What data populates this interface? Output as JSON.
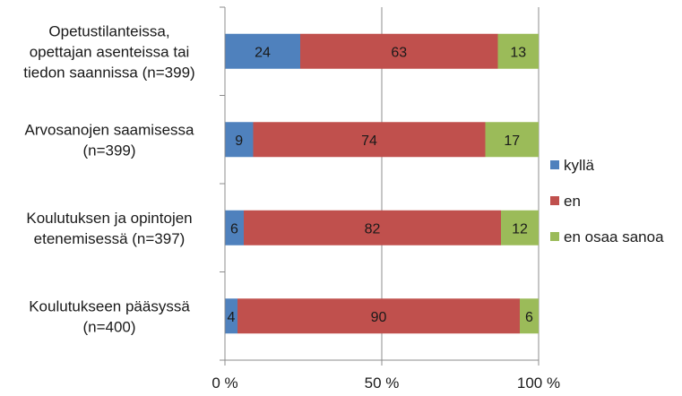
{
  "chart_data": {
    "type": "bar",
    "orientation": "horizontal",
    "stacked": "percent",
    "categories": [
      [
        "Opetustilanteissa,",
        "opettajan asenteissa tai",
        "tiedon saannissa (n=399)"
      ],
      [
        "Arvosanojen saamisessa",
        "(n=399)"
      ],
      [
        "Koulutuksen ja opintojen",
        "etenemisessä (n=397)"
      ],
      [
        "Koulutukseen pääsyssä",
        "(n=400)"
      ]
    ],
    "series": [
      {
        "name": "kyllä",
        "color": "#4f81bd",
        "values": [
          24,
          9,
          6,
          4
        ]
      },
      {
        "name": "en",
        "color": "#c0504d",
        "values": [
          63,
          74,
          82,
          90
        ]
      },
      {
        "name": "en osaa sanoa",
        "color": "#9bbb59",
        "values": [
          13,
          17,
          12,
          6
        ]
      }
    ],
    "xlim": [
      0,
      100
    ],
    "x_ticks": [
      {
        "value": 0,
        "label": "0 %"
      },
      {
        "value": 50,
        "label": "50 %"
      },
      {
        "value": 100,
        "label": "100 %"
      }
    ],
    "grid": true,
    "legend_position": "right"
  }
}
